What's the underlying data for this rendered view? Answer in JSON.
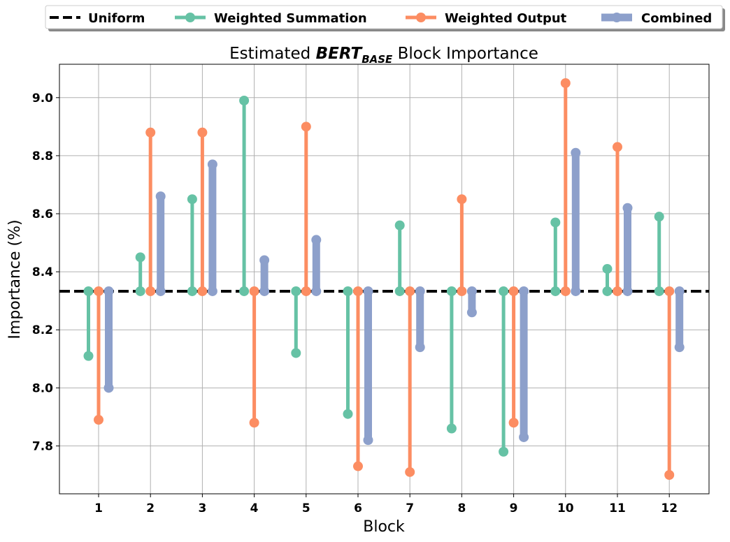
{
  "chart_data": {
    "type": "stem",
    "title": {
      "prefix": "Estimated ",
      "model": "BERT",
      "model_subscript": "BASE",
      "suffix": " Block Importance"
    },
    "xlabel": "Block",
    "ylabel": "Importance (%)",
    "categories": [
      "1",
      "2",
      "3",
      "4",
      "5",
      "6",
      "7",
      "8",
      "9",
      "10",
      "11",
      "12"
    ],
    "ylim": [
      7.635,
      9.115
    ],
    "yticks": [
      7.8,
      8.0,
      8.2,
      8.4,
      8.6,
      8.8,
      9.0
    ],
    "ytick_labels": [
      "7.8",
      "8.0",
      "8.2",
      "8.4",
      "8.6",
      "8.8",
      "9.0"
    ],
    "grid": true,
    "legend_position": "top-center, outside plot",
    "baseline": {
      "name": "Uniform",
      "value": 8.333,
      "color": "#000000"
    },
    "series": [
      {
        "name": "Weighted Summation",
        "color": "#66c2a5",
        "values": [
          8.11,
          8.45,
          8.65,
          8.99,
          8.12,
          7.91,
          8.56,
          7.86,
          7.78,
          8.57,
          8.41,
          8.59
        ]
      },
      {
        "name": "Weighted Output",
        "color": "#fc8d62",
        "values": [
          7.89,
          8.88,
          8.88,
          7.88,
          8.9,
          7.73,
          7.71,
          8.65,
          7.88,
          9.05,
          8.83,
          7.7
        ]
      },
      {
        "name": "Combined",
        "color": "#8da0cb",
        "values": [
          8.0,
          8.66,
          8.77,
          8.44,
          8.51,
          7.82,
          8.14,
          8.26,
          7.83,
          8.81,
          8.62,
          8.14
        ]
      }
    ]
  }
}
